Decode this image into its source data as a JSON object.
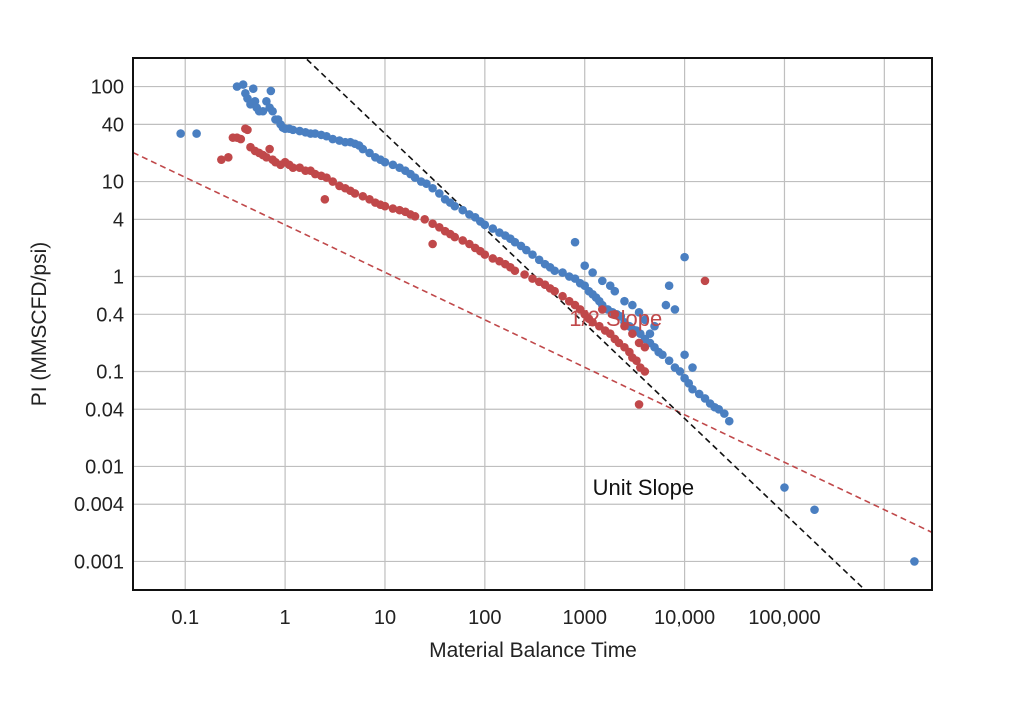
{
  "chart_data": {
    "type": "scatter",
    "title": "",
    "xlabel": "Material Balance Time",
    "ylabel": "PI (MMSCFD/psi)",
    "xscale": "log",
    "yscale": "log",
    "xlim": [
      0.03,
      3000000
    ],
    "ylim": [
      0.0005,
      200
    ],
    "grid": true,
    "x_ticks": [
      {
        "value": 0.1,
        "label": "0.1"
      },
      {
        "value": 1,
        "label": "1"
      },
      {
        "value": 10,
        "label": "10"
      },
      {
        "value": 100,
        "label": "100"
      },
      {
        "value": 1000,
        "label": "1000"
      },
      {
        "value": 10000,
        "label": "10,000"
      },
      {
        "value": 100000,
        "label": "100,000"
      }
    ],
    "x_grid_extra": [
      1000000
    ],
    "y_ticks": [
      {
        "value": 100,
        "label": "100"
      },
      {
        "value": 40,
        "label": "40"
      },
      {
        "value": 10,
        "label": "10"
      },
      {
        "value": 4,
        "label": "4"
      },
      {
        "value": 1,
        "label": "1"
      },
      {
        "value": 0.4,
        "label": "0.4"
      },
      {
        "value": 0.1,
        "label": "0.1"
      },
      {
        "value": 0.04,
        "label": "0.04"
      },
      {
        "value": 0.01,
        "label": "0.01"
      },
      {
        "value": 0.004,
        "label": "0.004"
      },
      {
        "value": 0.001,
        "label": "0.001"
      }
    ],
    "colors": {
      "blue": "#4a7fc1",
      "red": "#c0484a",
      "black": "#111111",
      "grid": "#bfbfbf"
    },
    "series": [
      {
        "color": "#4a7fc1",
        "points": [
          [
            0.09,
            32
          ],
          [
            0.13,
            32
          ],
          [
            0.33,
            100
          ],
          [
            0.38,
            105
          ],
          [
            0.4,
            85
          ],
          [
            0.42,
            75
          ],
          [
            0.45,
            65
          ],
          [
            0.48,
            95
          ],
          [
            0.5,
            70
          ],
          [
            0.52,
            60
          ],
          [
            0.55,
            55
          ],
          [
            0.6,
            55
          ],
          [
            0.65,
            70
          ],
          [
            0.7,
            60
          ],
          [
            0.72,
            90
          ],
          [
            0.75,
            55
          ],
          [
            0.8,
            45
          ],
          [
            0.85,
            45
          ],
          [
            0.9,
            40
          ],
          [
            0.95,
            37
          ],
          [
            1.0,
            36
          ],
          [
            1.1,
            36
          ],
          [
            1.2,
            35
          ],
          [
            1.4,
            34
          ],
          [
            1.6,
            33
          ],
          [
            1.8,
            32
          ],
          [
            2.0,
            32
          ],
          [
            2.3,
            31
          ],
          [
            2.6,
            30
          ],
          [
            3.0,
            28
          ],
          [
            3.5,
            27
          ],
          [
            4.0,
            26
          ],
          [
            4.5,
            26
          ],
          [
            5.0,
            25
          ],
          [
            5.5,
            24
          ],
          [
            6.0,
            22
          ],
          [
            7.0,
            20
          ],
          [
            8.0,
            18
          ],
          [
            9.0,
            17
          ],
          [
            10,
            16
          ],
          [
            12,
            15
          ],
          [
            14,
            14
          ],
          [
            16,
            13
          ],
          [
            18,
            12
          ],
          [
            20,
            11
          ],
          [
            23,
            10
          ],
          [
            26,
            9.5
          ],
          [
            30,
            8.5
          ],
          [
            35,
            7.5
          ],
          [
            40,
            6.5
          ],
          [
            45,
            6
          ],
          [
            50,
            5.5
          ],
          [
            60,
            5
          ],
          [
            70,
            4.5
          ],
          [
            80,
            4.2
          ],
          [
            90,
            3.8
          ],
          [
            100,
            3.5
          ],
          [
            120,
            3.2
          ],
          [
            140,
            2.9
          ],
          [
            160,
            2.7
          ],
          [
            180,
            2.5
          ],
          [
            200,
            2.3
          ],
          [
            230,
            2.1
          ],
          [
            260,
            1.9
          ],
          [
            300,
            1.7
          ],
          [
            350,
            1.5
          ],
          [
            400,
            1.35
          ],
          [
            450,
            1.25
          ],
          [
            500,
            1.15
          ],
          [
            600,
            1.1
          ],
          [
            700,
            1.0
          ],
          [
            800,
            0.95
          ],
          [
            900,
            0.85
          ],
          [
            1000,
            0.8
          ],
          [
            1100,
            0.7
          ],
          [
            1200,
            0.65
          ],
          [
            1300,
            0.6
          ],
          [
            1400,
            0.55
          ],
          [
            1500,
            0.5
          ],
          [
            1700,
            0.45
          ],
          [
            1900,
            0.42
          ],
          [
            2100,
            0.4
          ],
          [
            2300,
            0.38
          ],
          [
            2500,
            0.33
          ],
          [
            2800,
            0.3
          ],
          [
            3000,
            0.28
          ],
          [
            3300,
            0.27
          ],
          [
            3600,
            0.25
          ],
          [
            4000,
            0.22
          ],
          [
            4500,
            0.2
          ],
          [
            5000,
            0.18
          ],
          [
            5500,
            0.16
          ],
          [
            6000,
            0.15
          ],
          [
            7000,
            0.13
          ],
          [
            8000,
            0.11
          ],
          [
            9000,
            0.1
          ],
          [
            10000,
            0.085
          ],
          [
            11000,
            0.075
          ],
          [
            12000,
            0.065
          ],
          [
            14000,
            0.058
          ],
          [
            16000,
            0.052
          ],
          [
            18000,
            0.046
          ],
          [
            20000,
            0.042
          ],
          [
            22000,
            0.04
          ],
          [
            25000,
            0.036
          ],
          [
            28000,
            0.03
          ],
          [
            800,
            2.3
          ],
          [
            1000,
            1.3
          ],
          [
            1200,
            1.1
          ],
          [
            1500,
            0.9
          ],
          [
            1800,
            0.8
          ],
          [
            2000,
            0.7
          ],
          [
            2500,
            0.55
          ],
          [
            3000,
            0.5
          ],
          [
            3500,
            0.42
          ],
          [
            4000,
            0.35
          ],
          [
            5000,
            0.3
          ],
          [
            4500,
            0.25
          ],
          [
            6500,
            0.5
          ],
          [
            8000,
            0.45
          ],
          [
            10000,
            0.15
          ],
          [
            12000,
            0.11
          ],
          [
            7000,
            0.8
          ],
          [
            10000,
            1.6
          ],
          [
            100000,
            0.006
          ],
          [
            200000,
            0.0035
          ],
          [
            2000000,
            0.001
          ]
        ]
      },
      {
        "color": "#c0484a",
        "points": [
          [
            0.23,
            17
          ],
          [
            0.27,
            18
          ],
          [
            0.3,
            29
          ],
          [
            0.33,
            29
          ],
          [
            0.36,
            28
          ],
          [
            0.4,
            36
          ],
          [
            0.42,
            35
          ],
          [
            0.45,
            23
          ],
          [
            0.5,
            21
          ],
          [
            0.55,
            20
          ],
          [
            0.6,
            19
          ],
          [
            0.65,
            18
          ],
          [
            0.7,
            22
          ],
          [
            0.75,
            17
          ],
          [
            0.8,
            16
          ],
          [
            0.9,
            15
          ],
          [
            1.0,
            16
          ],
          [
            1.1,
            15
          ],
          [
            1.2,
            14
          ],
          [
            1.4,
            14
          ],
          [
            1.6,
            13
          ],
          [
            1.8,
            13
          ],
          [
            2.0,
            12
          ],
          [
            2.3,
            11.5
          ],
          [
            2.6,
            11
          ],
          [
            3.0,
            10
          ],
          [
            3.5,
            9
          ],
          [
            4.0,
            8.5
          ],
          [
            4.5,
            8
          ],
          [
            5.0,
            7.5
          ],
          [
            6.0,
            7
          ],
          [
            7.0,
            6.5
          ],
          [
            8.0,
            6
          ],
          [
            9.0,
            5.7
          ],
          [
            10,
            5.5
          ],
          [
            12,
            5.2
          ],
          [
            14,
            5
          ],
          [
            16,
            4.8
          ],
          [
            18,
            4.5
          ],
          [
            20,
            4.3
          ],
          [
            25,
            4
          ],
          [
            30,
            3.6
          ],
          [
            35,
            3.3
          ],
          [
            40,
            3
          ],
          [
            45,
            2.8
          ],
          [
            50,
            2.6
          ],
          [
            60,
            2.4
          ],
          [
            70,
            2.2
          ],
          [
            80,
            2
          ],
          [
            90,
            1.85
          ],
          [
            100,
            1.7
          ],
          [
            120,
            1.55
          ],
          [
            140,
            1.45
          ],
          [
            160,
            1.35
          ],
          [
            180,
            1.25
          ],
          [
            200,
            1.15
          ],
          [
            250,
            1.05
          ],
          [
            300,
            0.95
          ],
          [
            350,
            0.88
          ],
          [
            400,
            0.82
          ],
          [
            450,
            0.75
          ],
          [
            500,
            0.7
          ],
          [
            600,
            0.62
          ],
          [
            700,
            0.55
          ],
          [
            800,
            0.5
          ],
          [
            900,
            0.45
          ],
          [
            1000,
            0.4
          ],
          [
            1100,
            0.36
          ],
          [
            1200,
            0.33
          ],
          [
            1400,
            0.3
          ],
          [
            1600,
            0.27
          ],
          [
            1800,
            0.25
          ],
          [
            2000,
            0.22
          ],
          [
            2200,
            0.2
          ],
          [
            2500,
            0.18
          ],
          [
            2800,
            0.16
          ],
          [
            3000,
            0.14
          ],
          [
            3300,
            0.13
          ],
          [
            3600,
            0.11
          ],
          [
            4000,
            0.1
          ],
          [
            2.5,
            6.5
          ],
          [
            30,
            2.2
          ],
          [
            1500,
            0.45
          ],
          [
            2000,
            0.4
          ],
          [
            2500,
            0.3
          ],
          [
            3000,
            0.25
          ],
          [
            3500,
            0.2
          ],
          [
            4000,
            0.18
          ],
          [
            3500,
            0.045
          ],
          [
            16000,
            0.9
          ]
        ]
      }
    ],
    "lines": [
      {
        "label": "1/2 Slope",
        "color": "#c0484a",
        "dash": true,
        "slope": -0.5,
        "anchor": [
          0.01,
          35
        ],
        "label_at": [
          700,
          0.3
        ]
      },
      {
        "label": "Unit Slope",
        "color": "#111111",
        "dash": true,
        "slope": -1,
        "anchor": [
          100,
          3.2
        ],
        "label_at": [
          1200,
          0.005
        ]
      }
    ]
  }
}
